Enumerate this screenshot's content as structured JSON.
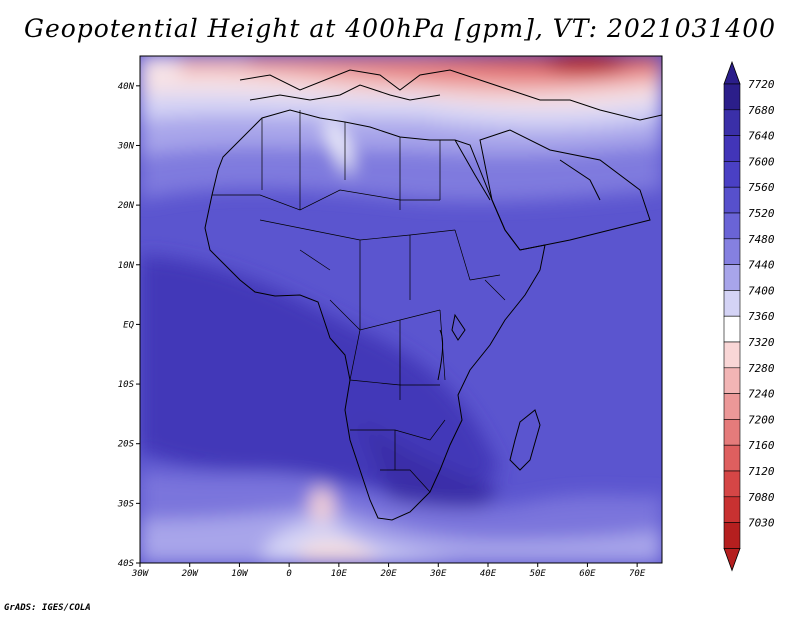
{
  "title": "Geopotential Height at 400hPa [gpm], VT: 2021031400",
  "footer": "GrADS: IGES/COLA",
  "map": {
    "lon_range": [
      -30,
      75
    ],
    "lat_range": [
      -40,
      45
    ],
    "lat_labels": [
      {
        "lat": 40,
        "text": "40N"
      },
      {
        "lat": 30,
        "text": "30N"
      },
      {
        "lat": 20,
        "text": "20N"
      },
      {
        "lat": 10,
        "text": "10N"
      },
      {
        "lat": 0,
        "text": "EQ"
      },
      {
        "lat": -10,
        "text": "10S"
      },
      {
        "lat": -20,
        "text": "20S"
      },
      {
        "lat": -30,
        "text": "30S"
      },
      {
        "lat": -40,
        "text": "40S"
      }
    ],
    "lon_labels": [
      {
        "lon": -30,
        "text": "30W"
      },
      {
        "lon": -20,
        "text": "20W"
      },
      {
        "lon": -10,
        "text": "10W"
      },
      {
        "lon": 0,
        "text": "0"
      },
      {
        "lon": 10,
        "text": "10E"
      },
      {
        "lon": 20,
        "text": "20E"
      },
      {
        "lon": 30,
        "text": "30E"
      },
      {
        "lon": 40,
        "text": "40E"
      },
      {
        "lon": 50,
        "text": "50E"
      },
      {
        "lon": 60,
        "text": "60E"
      },
      {
        "lon": 70,
        "text": "70E"
      }
    ]
  },
  "colorbar": {
    "levels": [
      {
        "value": "7720",
        "color": "#2b1e8a"
      },
      {
        "value": "7680",
        "color": "#3a2fa8"
      },
      {
        "value": "7640",
        "color": "#4235b8"
      },
      {
        "value": "7600",
        "color": "#4a40c4"
      },
      {
        "value": "7560",
        "color": "#5750cc"
      },
      {
        "value": "7520",
        "color": "#6a64d6"
      },
      {
        "value": "7480",
        "color": "#8580e0"
      },
      {
        "value": "7440",
        "color": "#a8a5ea"
      },
      {
        "value": "7400",
        "color": "#d4d3f5"
      },
      {
        "value": "7360",
        "color": "#ffffff"
      },
      {
        "value": "7320",
        "color": "#f9d6d6"
      },
      {
        "value": "7280",
        "color": "#f2b5b5"
      },
      {
        "value": "7240",
        "color": "#ec9898"
      },
      {
        "value": "7200",
        "color": "#e57b7b"
      },
      {
        "value": "7160",
        "color": "#de5f5f"
      },
      {
        "value": "7120",
        "color": "#d54646"
      },
      {
        "value": "7080",
        "color": "#c83131"
      },
      {
        "value": "7030",
        "color": "#b51f1f"
      }
    ]
  }
}
